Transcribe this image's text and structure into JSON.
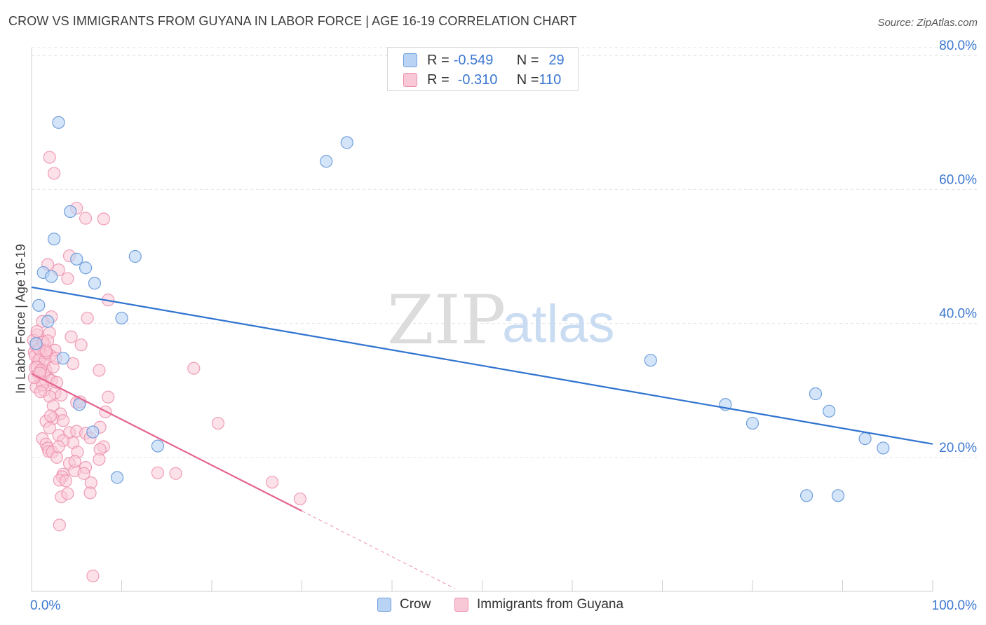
{
  "header": {
    "title": "CROW VS IMMIGRANTS FROM GUYANA IN LABOR FORCE | AGE 16-19 CORRELATION CHART",
    "source": "Source: ZipAtlas.com"
  },
  "legend": {
    "row1": {
      "r_label": "R = ",
      "r_value": "-0.549",
      "n_label": "N = ",
      "n_value": "29"
    },
    "row2": {
      "r_label": "R = ",
      "r_value": "-0.310",
      "n_label": "N = ",
      "n_value": "110"
    }
  },
  "watermark": {
    "zip": "ZIP",
    "atlas": "atlas"
  },
  "colors": {
    "crow": "#6f9fdc",
    "crow_fill": "#b9d3f5",
    "guyana": "#ec8eab",
    "guyana_fill": "#f9c8d7",
    "crow_line": "#2f73d0",
    "guyana_line": "#e4638f"
  },
  "chart_data": {
    "type": "scatter",
    "title": "CROW VS IMMIGRANTS FROM GUYANA IN LABOR FORCE | AGE 16-19 CORRELATION CHART",
    "xlabel": "",
    "ylabel": "In Labor Force | Age 16-19",
    "xlim": [
      0,
      100
    ],
    "ylim": [
      0,
      82
    ],
    "x_tick_labels": [
      "0.0%",
      "100.0%"
    ],
    "y_ticks": [
      20,
      40,
      60,
      80
    ],
    "y_tick_labels": [
      "20.0%",
      "40.0%",
      "60.0%",
      "80.0%"
    ],
    "grid": true,
    "legend_position": "top-center",
    "series": [
      {
        "name": "Crow",
        "r": -0.549,
        "n": 29,
        "trend": {
          "x": [
            0,
            100
          ],
          "y": [
            45.4,
            22.0
          ]
        },
        "points": [
          [
            3.0,
            70.0
          ],
          [
            4.3,
            56.7
          ],
          [
            2.5,
            52.6
          ],
          [
            11.5,
            50.0
          ],
          [
            5.0,
            49.6
          ],
          [
            6.0,
            48.3
          ],
          [
            1.3,
            47.6
          ],
          [
            2.2,
            47.0
          ],
          [
            7.0,
            46.0
          ],
          [
            0.8,
            42.7
          ],
          [
            10.0,
            40.8
          ],
          [
            1.8,
            40.3
          ],
          [
            3.5,
            34.8
          ],
          [
            5.3,
            27.9
          ],
          [
            6.8,
            23.8
          ],
          [
            14.0,
            21.7
          ],
          [
            9.5,
            17.0
          ],
          [
            32.7,
            64.2
          ],
          [
            35.0,
            67.0
          ],
          [
            68.7,
            34.5
          ],
          [
            77.0,
            27.9
          ],
          [
            80.0,
            25.1
          ],
          [
            87.0,
            29.5
          ],
          [
            88.5,
            26.9
          ],
          [
            92.5,
            22.8
          ],
          [
            94.5,
            21.4
          ],
          [
            86.0,
            14.3
          ],
          [
            89.5,
            14.3
          ],
          [
            0.5,
            37.0
          ]
        ]
      },
      {
        "name": "Immigrants from Guyana",
        "r": -0.31,
        "n": 110,
        "trend": {
          "x": [
            0,
            30
          ],
          "y": [
            32.5,
            12.0
          ]
        },
        "trend_dashed": {
          "x": [
            30,
            47
          ],
          "y": [
            12.0,
            0.4
          ]
        },
        "points": [
          [
            2.0,
            64.8
          ],
          [
            2.5,
            62.4
          ],
          [
            5.0,
            57.2
          ],
          [
            6.0,
            55.7
          ],
          [
            8.0,
            55.6
          ],
          [
            4.2,
            50.1
          ],
          [
            1.8,
            48.8
          ],
          [
            3.0,
            48.0
          ],
          [
            4.0,
            46.7
          ],
          [
            8.5,
            43.5
          ],
          [
            2.2,
            41.0
          ],
          [
            6.2,
            40.8
          ],
          [
            1.2,
            40.3
          ],
          [
            2.0,
            38.6
          ],
          [
            0.6,
            38.3
          ],
          [
            4.4,
            38.0
          ],
          [
            5.5,
            36.8
          ],
          [
            1.5,
            36.8
          ],
          [
            0.9,
            36.3
          ],
          [
            2.6,
            36.0
          ],
          [
            0.3,
            35.7
          ],
          [
            1.1,
            35.3
          ],
          [
            2.1,
            35.2
          ],
          [
            0.7,
            34.4
          ],
          [
            1.4,
            33.9
          ],
          [
            4.6,
            34.0
          ],
          [
            0.4,
            33.4
          ],
          [
            1.6,
            33.0
          ],
          [
            7.5,
            33.0
          ],
          [
            18.0,
            33.3
          ],
          [
            0.8,
            32.2
          ],
          [
            1.9,
            31.8
          ],
          [
            1.2,
            31.2
          ],
          [
            0.5,
            30.5
          ],
          [
            1.4,
            30.0
          ],
          [
            2.6,
            29.6
          ],
          [
            2.0,
            29.1
          ],
          [
            3.3,
            29.3
          ],
          [
            8.5,
            29.0
          ],
          [
            5.0,
            28.2
          ],
          [
            2.4,
            27.7
          ],
          [
            8.2,
            26.8
          ],
          [
            3.2,
            26.5
          ],
          [
            2.4,
            25.8
          ],
          [
            1.6,
            25.4
          ],
          [
            3.5,
            25.5
          ],
          [
            20.7,
            25.1
          ],
          [
            7.6,
            24.5
          ],
          [
            4.2,
            23.7
          ],
          [
            5.0,
            23.9
          ],
          [
            6.0,
            23.6
          ],
          [
            3.0,
            23.3
          ],
          [
            1.2,
            22.8
          ],
          [
            6.5,
            22.9
          ],
          [
            1.6,
            22.0
          ],
          [
            4.6,
            22.2
          ],
          [
            1.8,
            21.4
          ],
          [
            8.0,
            21.6
          ],
          [
            1.9,
            20.9
          ],
          [
            2.3,
            20.8
          ],
          [
            7.6,
            21.2
          ],
          [
            5.1,
            20.8
          ],
          [
            2.8,
            20.0
          ],
          [
            7.5,
            19.7
          ],
          [
            4.2,
            19.1
          ],
          [
            6.0,
            18.5
          ],
          [
            4.8,
            18.0
          ],
          [
            3.5,
            17.5
          ],
          [
            5.8,
            17.6
          ],
          [
            3.4,
            17.1
          ],
          [
            14.0,
            17.7
          ],
          [
            16.0,
            17.6
          ],
          [
            3.1,
            16.6
          ],
          [
            3.8,
            16.5
          ],
          [
            6.6,
            16.2
          ],
          [
            26.7,
            16.3
          ],
          [
            6.5,
            14.7
          ],
          [
            3.3,
            14.1
          ],
          [
            4.0,
            14.6
          ],
          [
            29.8,
            13.8
          ],
          [
            3.1,
            9.9
          ],
          [
            6.8,
            2.3
          ],
          [
            0.2,
            37.5
          ],
          [
            0.5,
            36.6
          ],
          [
            0.4,
            35.2
          ],
          [
            0.9,
            34.7
          ],
          [
            1.5,
            34.5
          ],
          [
            0.6,
            33.5
          ],
          [
            1.4,
            32.5
          ],
          [
            2.2,
            31.5
          ],
          [
            1.2,
            30.8
          ],
          [
            1.7,
            35.6
          ],
          [
            2.4,
            33.5
          ],
          [
            0.8,
            36.2
          ],
          [
            1.3,
            37.2
          ],
          [
            2.8,
            31.2
          ],
          [
            0.3,
            31.9
          ],
          [
            1.0,
            33.0
          ],
          [
            3.5,
            22.5
          ],
          [
            2.1,
            26.2
          ],
          [
            0.6,
            38.8
          ],
          [
            1.8,
            37.4
          ],
          [
            2.7,
            34.8
          ],
          [
            1.0,
            29.8
          ],
          [
            5.4,
            28.3
          ],
          [
            2.0,
            24.4
          ],
          [
            3.0,
            21.6
          ],
          [
            4.8,
            19.4
          ],
          [
            1.6,
            35.9
          ],
          [
            0.9,
            32.6
          ]
        ]
      }
    ]
  },
  "bottom_legend": {
    "crow": "Crow",
    "guyana": "Immigrants from Guyana"
  }
}
